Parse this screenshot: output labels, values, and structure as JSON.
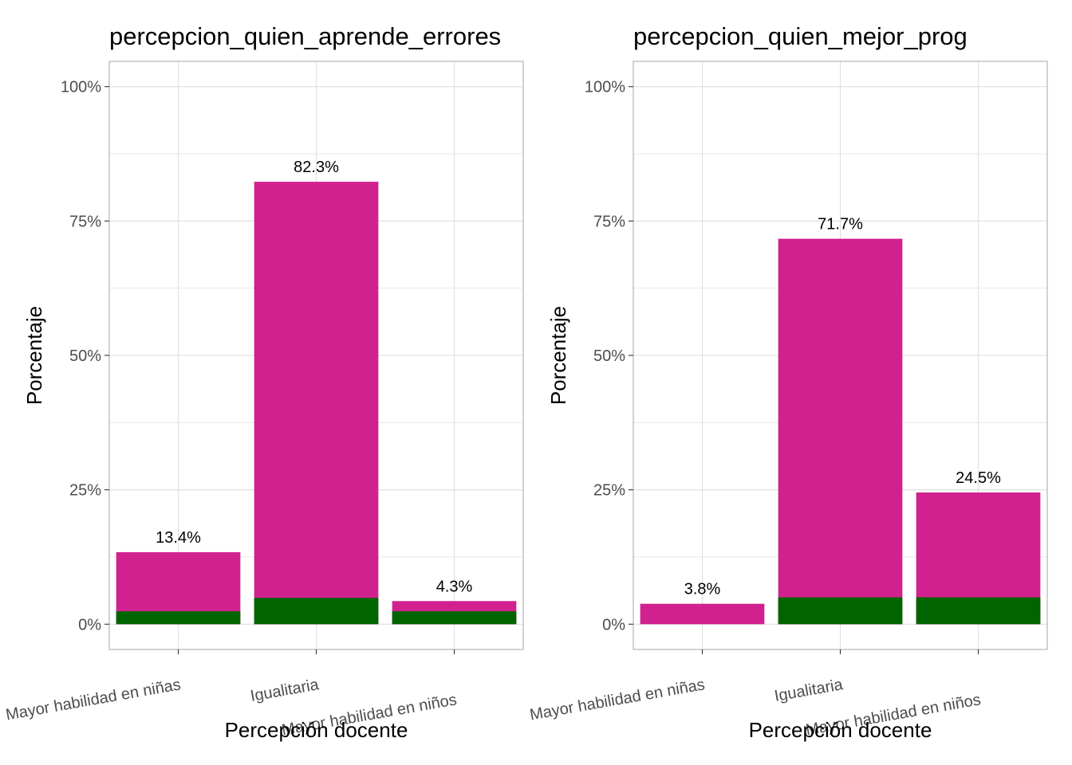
{
  "chart_data": [
    {
      "type": "bar",
      "title": "percepcion_quien_aprende_errores",
      "xlabel": "Percepción docente",
      "ylabel": "Porcentaje",
      "categories": [
        "Mayor habilidad en niñas",
        "Igualitaria",
        "Mayor habilidad en niños"
      ],
      "values": [
        13.4,
        82.3,
        4.3
      ],
      "data_labels": [
        "13.4%",
        "82.3%",
        "4.3%"
      ],
      "inner_values": [
        2.4,
        4.9,
        2.4
      ],
      "ylim": [
        -4.7,
        104.7
      ],
      "yticks": [
        0,
        25,
        50,
        75,
        100
      ],
      "ytick_labels": [
        "0%",
        "25%",
        "50%",
        "75%",
        "100%"
      ],
      "grid": true,
      "colors": {
        "bar": "#d1218e",
        "inner": "#006400",
        "grid": "#dedede",
        "border": "#b3b3b3"
      }
    },
    {
      "type": "bar",
      "title": "percepcion_quien_mejor_prog",
      "xlabel": "Percepción docente",
      "ylabel": "Porcentaje",
      "categories": [
        "Mayor habilidad en niñas",
        "Igualitaria",
        "Mayor habilidad en niños"
      ],
      "values": [
        3.8,
        71.7,
        24.5
      ],
      "data_labels": [
        "3.8%",
        "71.7%",
        "24.5%"
      ],
      "inner_values": [
        0,
        5.0,
        5.0
      ],
      "ylim": [
        -4.7,
        104.7
      ],
      "yticks": [
        0,
        25,
        50,
        75,
        100
      ],
      "ytick_labels": [
        "0%",
        "25%",
        "50%",
        "75%",
        "100%"
      ],
      "grid": true,
      "colors": {
        "bar": "#d1218e",
        "inner": "#006400",
        "grid": "#dedede",
        "border": "#b3b3b3"
      }
    }
  ]
}
